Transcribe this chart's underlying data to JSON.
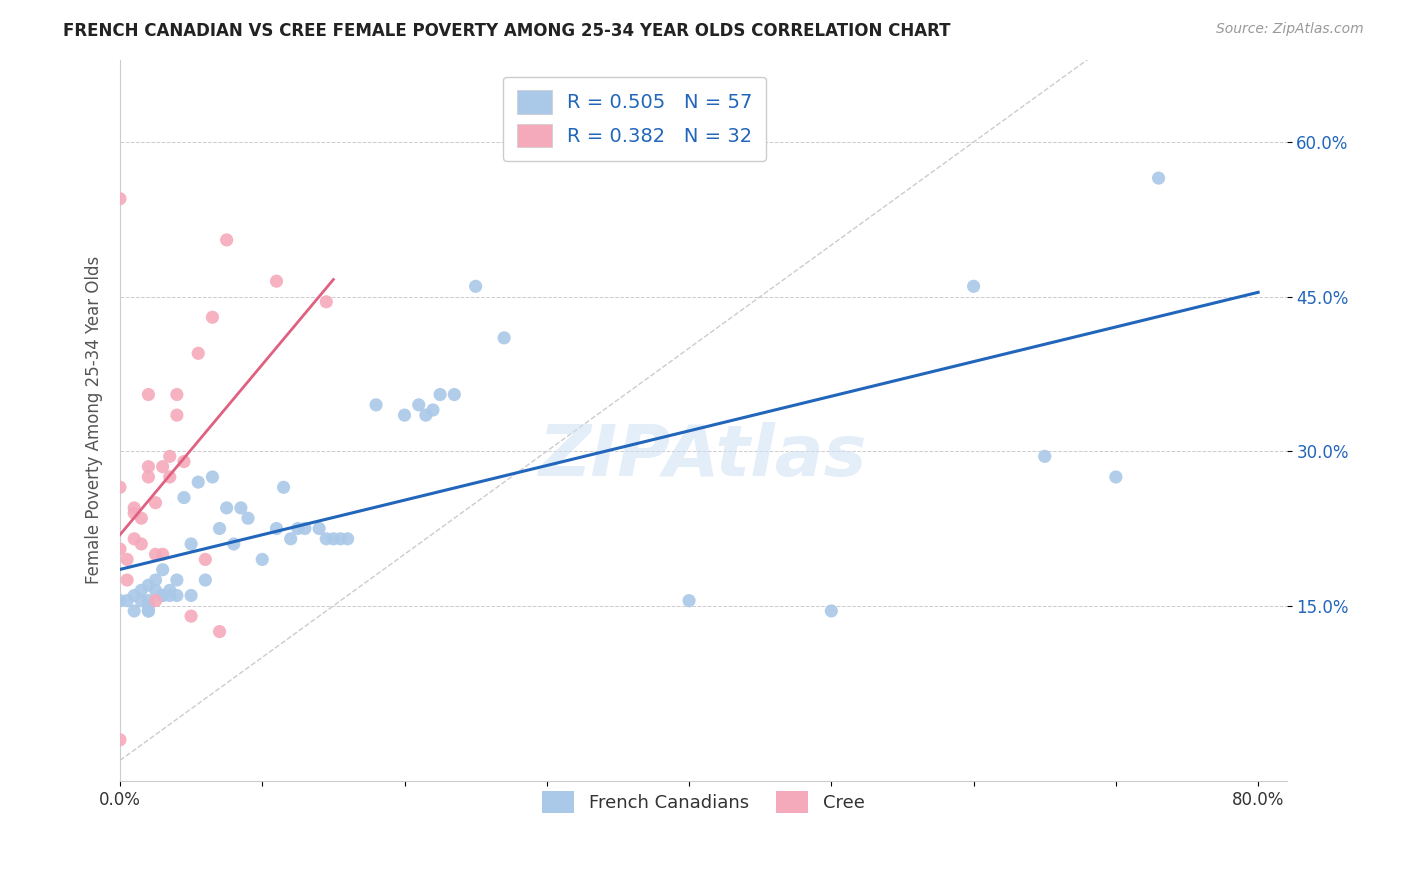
{
  "title": "FRENCH CANADIAN VS CREE FEMALE POVERTY AMONG 25-34 YEAR OLDS CORRELATION CHART",
  "source": "Source: ZipAtlas.com",
  "ylabel": "Female Poverty Among 25-34 Year Olds",
  "xlim": [
    0.0,
    0.82
  ],
  "ylim": [
    -0.02,
    0.68
  ],
  "xtick_pos": [
    0.0,
    0.1,
    0.2,
    0.3,
    0.4,
    0.5,
    0.6,
    0.7,
    0.8
  ],
  "xtick_labels": [
    "0.0%",
    "",
    "",
    "",
    "",
    "",
    "",
    "",
    "80.0%"
  ],
  "ytick_pos": [
    0.15,
    0.3,
    0.45,
    0.6
  ],
  "ytick_labels": [
    "15.0%",
    "30.0%",
    "45.0%",
    "60.0%"
  ],
  "R_french": 0.505,
  "N_french": 57,
  "R_cree": 0.382,
  "N_cree": 32,
  "french_color": "#aac8e8",
  "cree_color": "#f5aabb",
  "trendline_french_color": "#2266bb",
  "trendline_cree_color": "#e06080",
  "watermark": "ZIPAtlas",
  "french_x": [
    0.0,
    0.005,
    0.01,
    0.01,
    0.015,
    0.015,
    0.02,
    0.02,
    0.02,
    0.02,
    0.02,
    0.025,
    0.025,
    0.03,
    0.03,
    0.03,
    0.035,
    0.035,
    0.04,
    0.04,
    0.045,
    0.05,
    0.05,
    0.055,
    0.06,
    0.065,
    0.07,
    0.075,
    0.08,
    0.085,
    0.09,
    0.1,
    0.11,
    0.115,
    0.12,
    0.125,
    0.13,
    0.14,
    0.145,
    0.15,
    0.155,
    0.16,
    0.18,
    0.2,
    0.21,
    0.215,
    0.22,
    0.225,
    0.235,
    0.25,
    0.27,
    0.4,
    0.5,
    0.6,
    0.65,
    0.7,
    0.73
  ],
  "french_y": [
    0.155,
    0.155,
    0.145,
    0.16,
    0.155,
    0.165,
    0.15,
    0.145,
    0.17,
    0.145,
    0.155,
    0.165,
    0.175,
    0.16,
    0.16,
    0.185,
    0.165,
    0.16,
    0.16,
    0.175,
    0.255,
    0.16,
    0.21,
    0.27,
    0.175,
    0.275,
    0.225,
    0.245,
    0.21,
    0.245,
    0.235,
    0.195,
    0.225,
    0.265,
    0.215,
    0.225,
    0.225,
    0.225,
    0.215,
    0.215,
    0.215,
    0.215,
    0.345,
    0.335,
    0.345,
    0.335,
    0.34,
    0.355,
    0.355,
    0.46,
    0.41,
    0.155,
    0.145,
    0.46,
    0.295,
    0.275,
    0.565
  ],
  "cree_x": [
    0.0,
    0.0,
    0.0,
    0.0,
    0.005,
    0.005,
    0.01,
    0.01,
    0.01,
    0.015,
    0.015,
    0.02,
    0.02,
    0.02,
    0.025,
    0.025,
    0.025,
    0.03,
    0.03,
    0.035,
    0.035,
    0.04,
    0.04,
    0.045,
    0.05,
    0.055,
    0.06,
    0.065,
    0.07,
    0.075,
    0.11,
    0.145
  ],
  "cree_y": [
    0.02,
    0.205,
    0.265,
    0.545,
    0.175,
    0.195,
    0.215,
    0.24,
    0.245,
    0.21,
    0.235,
    0.275,
    0.285,
    0.355,
    0.155,
    0.2,
    0.25,
    0.2,
    0.285,
    0.275,
    0.295,
    0.335,
    0.355,
    0.29,
    0.14,
    0.395,
    0.195,
    0.43,
    0.125,
    0.505,
    0.465,
    0.445
  ]
}
